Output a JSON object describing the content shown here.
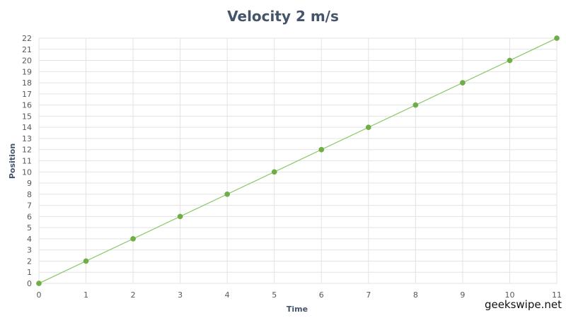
{
  "chart_data": {
    "type": "line",
    "title": "Velocity 2 m/s",
    "xlabel": "Time",
    "ylabel": "Position",
    "x": [
      0,
      1,
      2,
      3,
      4,
      5,
      6,
      7,
      8,
      9,
      10,
      11
    ],
    "series": [
      {
        "values": [
          0,
          2,
          4,
          6,
          8,
          10,
          12,
          14,
          16,
          18,
          20,
          22
        ]
      }
    ],
    "xlim": [
      0,
      11
    ],
    "ylim": [
      0,
      22
    ],
    "x_ticks": [
      "0",
      "1",
      "2",
      "3",
      "4",
      "5",
      "6",
      "7",
      "8",
      "9",
      "10",
      "11"
    ],
    "y_ticks": [
      "0",
      "1",
      "2",
      "3",
      "4",
      "5",
      "6",
      "7",
      "8",
      "9",
      "10",
      "11",
      "12",
      "13",
      "14",
      "15",
      "16",
      "17",
      "18",
      "19",
      "20",
      "21",
      "22"
    ],
    "grid": true,
    "legend": "none",
    "colors": {
      "line": "#8dc96b",
      "marker": "#70ad47",
      "grid": "#e3e3e3",
      "title": "#44546a"
    }
  },
  "watermark": "geekswipe.net"
}
